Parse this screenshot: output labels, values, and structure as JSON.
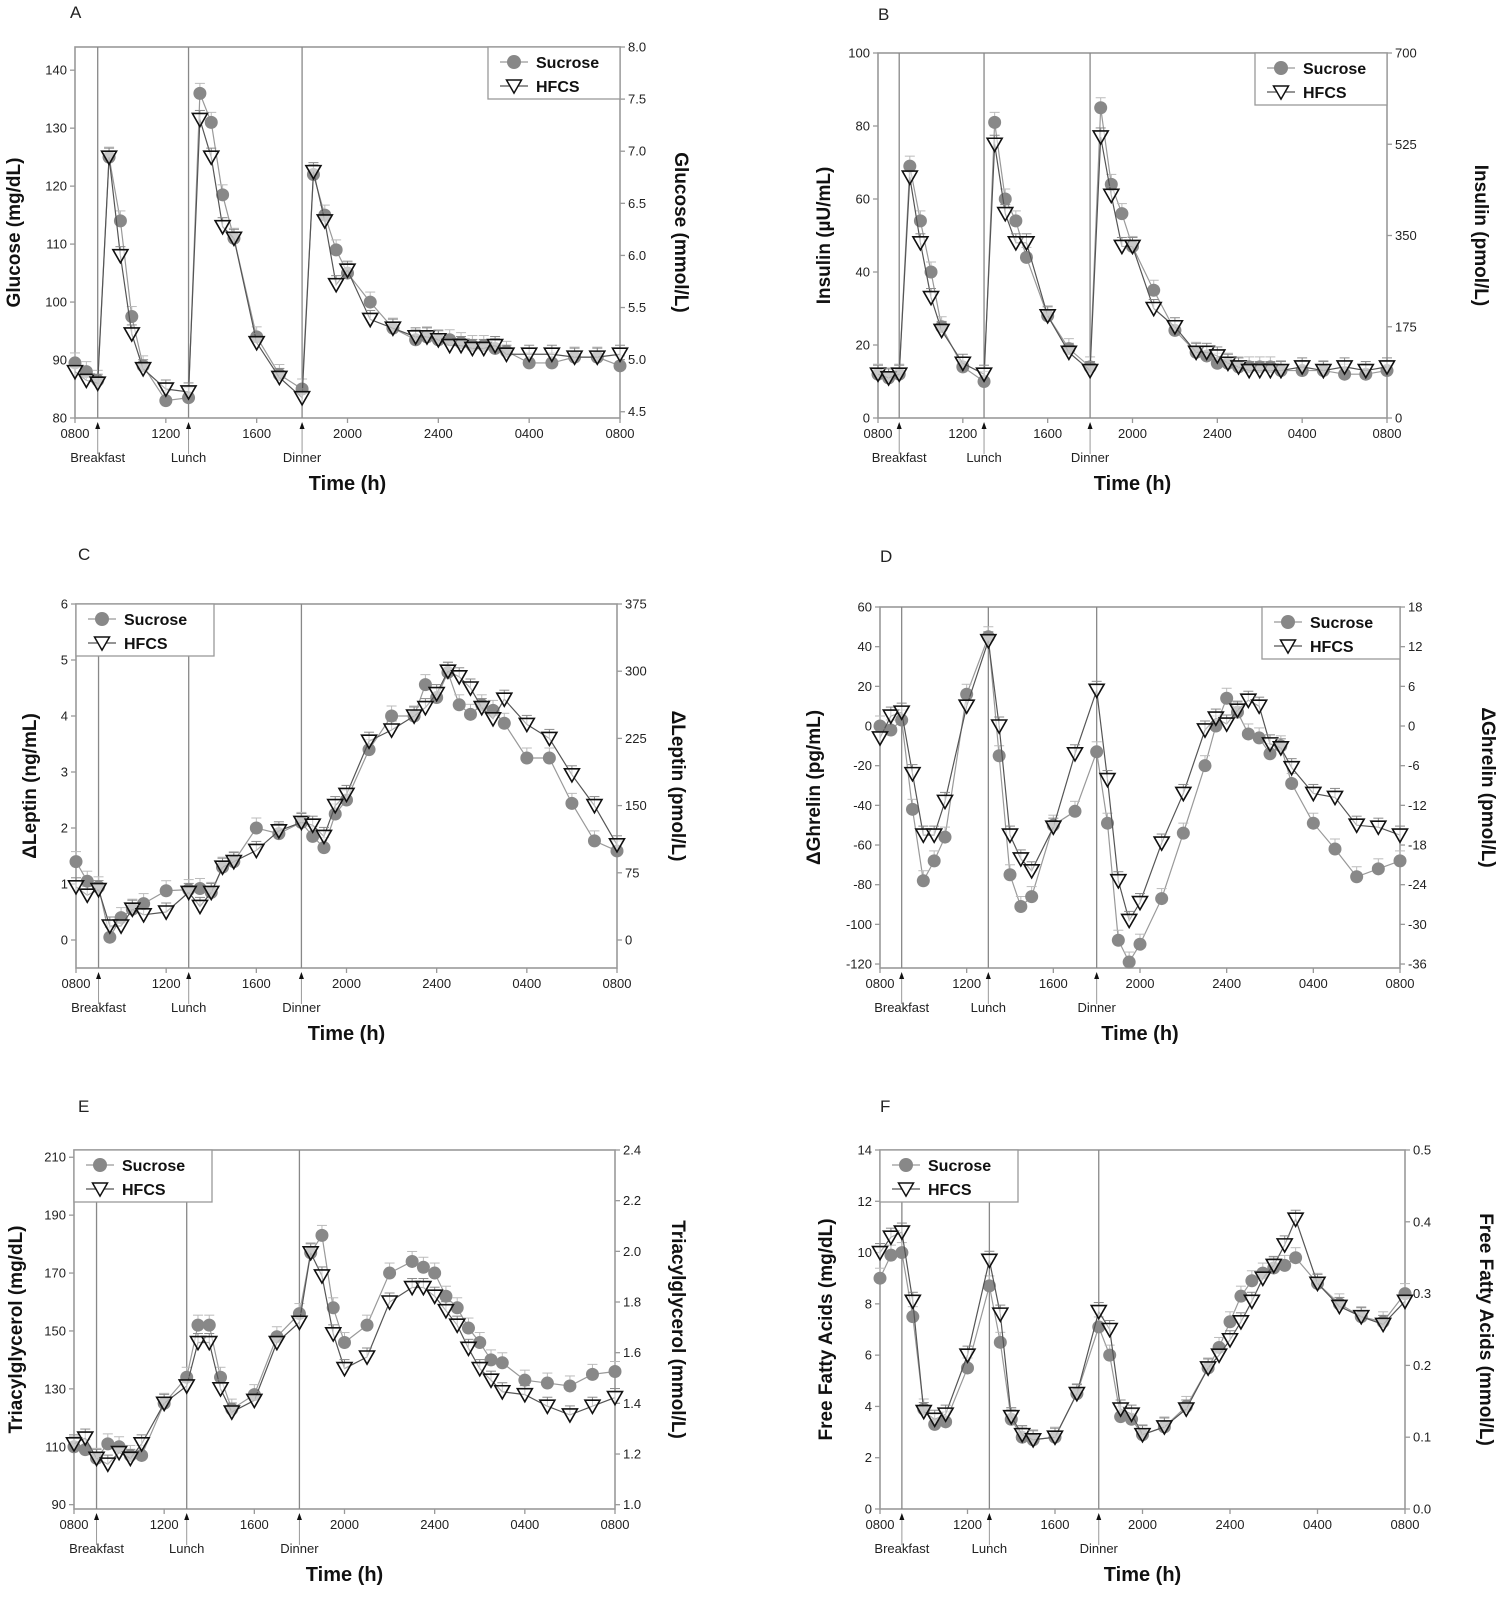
{
  "figure": {
    "x_title": "Time (h)",
    "x_tick_labels": [
      "0800",
      "1200",
      "1600",
      "2000",
      "2400",
      "0400",
      "0800"
    ],
    "meals": [
      {
        "label": "Breakfast",
        "hour": 1
      },
      {
        "label": "Lunch",
        "hour": 5
      },
      {
        "label": "Dinner",
        "hour": 10
      }
    ],
    "legend": {
      "sucrose": "Sucrose",
      "hfcs": "HFCS"
    },
    "colors": {
      "sucrose": "#888888",
      "hfcs_fill": "#ffffff",
      "hfcs_stroke": "#111111",
      "axis": "#999999",
      "meal_line": "#888888"
    }
  },
  "chart_data": [
    {
      "type": "line",
      "panel": "A",
      "title": "",
      "xlabel": "Time (h)",
      "ylabel": "Glucose (mg/dL)",
      "ylabel_right": "Glucose (mmol/L)",
      "x_unit": "hours after 0800",
      "xlim": [
        0,
        24
      ],
      "ylim": [
        80,
        144
      ],
      "yticks": [
        80,
        90,
        100,
        110,
        120,
        130,
        140
      ],
      "ytick_labels": [
        "80",
        "90",
        "100",
        "110",
        "120",
        "130",
        "140"
      ],
      "right_ylim": [
        4.44,
        8.0
      ],
      "right_yticks": [
        4.5,
        5.0,
        5.5,
        6.0,
        6.5,
        7.0,
        7.5,
        8.0
      ],
      "right_ytick_labels": [
        "4.5",
        "5.0",
        "5.5",
        "6.0",
        "6.5",
        "7.0",
        "7.5",
        "8.0"
      ],
      "legend_position": "top-right",
      "x": [
        0,
        0.5,
        1,
        1.5,
        2,
        2.5,
        3,
        4,
        5,
        5.5,
        6,
        6.5,
        7,
        8,
        9,
        10,
        10.5,
        11,
        11.5,
        12,
        13,
        14,
        15,
        15.5,
        16,
        16.5,
        17,
        17.5,
        18,
        18.5,
        19,
        20,
        21,
        22,
        23,
        24
      ],
      "series": [
        {
          "name": "Sucrose",
          "values": [
            89.5,
            88,
            86.5,
            125,
            114,
            97.5,
            89,
            83,
            83.5,
            136,
            131,
            118.5,
            111,
            94,
            87.5,
            85,
            122,
            115,
            109,
            105,
            100,
            95.5,
            93.5,
            94,
            93.5,
            93.5,
            93,
            92.5,
            92.5,
            92,
            91.5,
            89.5,
            89.5,
            90.5,
            90.5,
            89
          ]
        },
        {
          "name": "HFCS",
          "values": [
            88,
            86.5,
            86,
            125,
            108,
            94.5,
            88.5,
            85,
            84.5,
            131.5,
            125,
            113,
            111,
            93,
            87,
            83.5,
            122.5,
            114,
            103,
            105.5,
            97,
            95.5,
            94,
            94,
            93.5,
            92.5,
            92.5,
            92,
            92,
            92.5,
            91,
            91,
            91,
            90.5,
            90.5,
            91
          ]
        }
      ]
    },
    {
      "type": "line",
      "panel": "B",
      "title": "",
      "xlabel": "Time (h)",
      "ylabel": "Insulin (µU/mL)",
      "ylabel_right": "Insulin (pmol/L)",
      "x_unit": "hours after 0800",
      "xlim": [
        0,
        24
      ],
      "ylim": [
        0,
        100
      ],
      "yticks": [
        0,
        20,
        40,
        60,
        80,
        100
      ],
      "ytick_labels": [
        "0",
        "20",
        "40",
        "60",
        "80",
        "100"
      ],
      "right_ylim": [
        0,
        700
      ],
      "right_yticks": [
        0,
        175,
        350,
        525,
        700
      ],
      "right_ytick_labels": [
        "0",
        "175",
        "350",
        "525",
        "700"
      ],
      "legend_position": "top-right",
      "x": [
        0,
        0.5,
        1,
        1.5,
        2,
        2.5,
        3,
        4,
        5,
        5.5,
        6,
        6.5,
        7,
        8,
        9,
        10,
        10.5,
        11,
        11.5,
        12,
        13,
        14,
        15,
        15.5,
        16,
        16.5,
        17,
        17.5,
        18,
        18.5,
        19,
        20,
        21,
        22,
        23,
        24
      ],
      "series": [
        {
          "name": "Sucrose",
          "values": [
            12,
            11,
            12,
            69,
            54,
            40,
            25,
            14,
            10,
            81,
            60,
            54,
            44,
            28,
            19,
            14,
            85,
            64,
            56,
            47,
            35,
            24,
            18,
            17,
            15,
            15,
            14,
            14,
            14,
            14,
            13,
            13,
            13,
            12,
            12,
            13
          ]
        },
        {
          "name": "HFCS",
          "values": [
            12,
            11,
            12,
            66,
            48,
            33,
            24,
            15,
            12,
            75,
            56,
            48,
            48,
            28,
            18,
            13,
            77,
            61,
            47,
            47,
            30,
            25,
            18,
            18,
            17,
            15,
            14,
            13,
            13,
            13,
            13,
            14,
            13,
            14,
            13,
            14
          ]
        }
      ]
    },
    {
      "type": "line",
      "panel": "C",
      "title": "",
      "xlabel": "Time (h)",
      "ylabel": "ΔLeptin (ng/mL)",
      "ylabel_right": "ΔLeptin (pmol/L)",
      "x_unit": "hours after 0800",
      "xlim": [
        0,
        24
      ],
      "ylim": [
        -0.5,
        6
      ],
      "yticks": [
        0,
        1,
        2,
        3,
        4,
        5,
        6
      ],
      "ytick_labels": [
        "0",
        "1",
        "2",
        "3",
        "4",
        "5",
        "6"
      ],
      "right_ylim": [
        -31.25,
        375
      ],
      "right_yticks": [
        0,
        75,
        150,
        225,
        300,
        375
      ],
      "right_ytick_labels": [
        "0",
        "75",
        "150",
        "225",
        "300",
        "375"
      ],
      "legend_position": "top-left",
      "x": [
        0,
        0.5,
        1,
        1.5,
        2,
        2.5,
        3,
        4,
        5,
        5.5,
        6,
        6.5,
        7,
        8,
        9,
        10,
        10.5,
        11,
        11.5,
        12,
        13,
        14,
        15,
        15.5,
        16,
        16.5,
        17,
        17.5,
        18,
        18.5,
        19,
        20,
        21,
        22,
        23,
        24
      ],
      "series": [
        {
          "name": "Sucrose",
          "values": [
            1.4,
            1.05,
            0.95,
            0.05,
            0.4,
            0.55,
            0.65,
            0.88,
            0.9,
            0.92,
            0.85,
            1.3,
            1.4,
            2.0,
            1.9,
            2.1,
            1.85,
            1.65,
            2.25,
            2.5,
            3.4,
            4.0,
            4.0,
            4.56,
            4.33,
            4.78,
            4.2,
            4.03,
            4.2,
            4.1,
            3.87,
            3.25,
            3.25,
            2.44,
            1.77,
            1.59
          ]
        },
        {
          "name": "HFCS",
          "values": [
            0.95,
            0.8,
            0.9,
            0.25,
            0.25,
            0.55,
            0.45,
            0.5,
            0.85,
            0.6,
            0.85,
            1.3,
            1.4,
            1.6,
            1.95,
            2.1,
            2.05,
            1.85,
            2.4,
            2.6,
            3.55,
            3.75,
            4.0,
            4.15,
            4.4,
            4.8,
            4.7,
            4.5,
            4.15,
            3.95,
            4.3,
            3.85,
            3.6,
            2.95,
            2.4,
            1.7
          ]
        }
      ]
    },
    {
      "type": "line",
      "panel": "D",
      "title": "",
      "xlabel": "Time (h)",
      "ylabel": "ΔGhrelin (pg/mL)",
      "ylabel_right": "ΔGhrelin (pmol/L)",
      "x_unit": "hours after 0800",
      "xlim": [
        0,
        24
      ],
      "ylim": [
        -122,
        60
      ],
      "yticks": [
        -120,
        -100,
        -80,
        -60,
        -40,
        -20,
        0,
        20,
        40,
        60
      ],
      "ytick_labels": [
        "-120",
        "-100",
        "-80",
        "-60",
        "-40",
        "-20",
        "0",
        "20",
        "40",
        "60"
      ],
      "right_ylim": [
        -36.6,
        18
      ],
      "right_yticks": [
        -36,
        -30,
        -24,
        -18,
        -12,
        -6,
        0,
        6,
        12,
        18
      ],
      "right_ytick_labels": [
        "-36",
        "-30",
        "-24",
        "-18",
        "-12",
        "-6",
        "0",
        "6",
        "12",
        "18"
      ],
      "legend_position": "top-right",
      "x": [
        0,
        0.5,
        1,
        1.5,
        2,
        2.5,
        3,
        4,
        5,
        5.5,
        6,
        6.5,
        7,
        8,
        9,
        10,
        10.5,
        11,
        11.5,
        12,
        13,
        14,
        15,
        15.5,
        16,
        16.5,
        17,
        17.5,
        18,
        18.5,
        19,
        20,
        21,
        22,
        23,
        24
      ],
      "series": [
        {
          "name": "Sucrose",
          "values": [
            0,
            -2,
            3,
            -42,
            -78,
            -68,
            -56,
            16,
            45,
            -15,
            -75,
            -91,
            -86,
            -50,
            -43,
            -13,
            -49,
            -108,
            -119,
            -110,
            -87,
            -54,
            -20,
            0,
            14,
            7,
            -4,
            -6,
            -14,
            -10,
            -29,
            -49,
            -62,
            -76,
            -72,
            -68
          ]
        },
        {
          "name": "HFCS",
          "values": [
            -6,
            5,
            7,
            -24,
            -55,
            -55,
            -38,
            10,
            43,
            0,
            -55,
            -67,
            -73,
            -51,
            -14,
            18,
            -27,
            -78,
            -98,
            -89,
            -59,
            -34,
            -2,
            4,
            1,
            8,
            13,
            10,
            -9,
            -11,
            -21,
            -34,
            -36,
            -50,
            -51,
            -55
          ]
        }
      ]
    },
    {
      "type": "line",
      "panel": "E",
      "title": "",
      "xlabel": "Time (h)",
      "ylabel": "Triacylglycerol (mg/dL)",
      "ylabel_right": "Triacylglycerol (mmol/L)",
      "x_unit": "hours after 0800",
      "xlim": [
        0,
        24
      ],
      "ylim": [
        88.5,
        212.5
      ],
      "yticks": [
        90,
        110,
        130,
        150,
        170,
        190,
        210
      ],
      "ytick_labels": [
        "90",
        "110",
        "130",
        "150",
        "170",
        "190",
        "210"
      ],
      "right_ylim": [
        0.983,
        2.4
      ],
      "right_yticks": [
        1.0,
        1.2,
        1.4,
        1.6,
        1.8,
        2.0,
        2.2,
        2.4
      ],
      "right_ytick_labels": [
        "1.0",
        "1.2",
        "1.4",
        "1.6",
        "1.8",
        "2.0",
        "2.2",
        "2.4"
      ],
      "legend_position": "top-left",
      "x": [
        0,
        0.5,
        1,
        1.5,
        2,
        2.5,
        3,
        4,
        5,
        5.5,
        6,
        6.5,
        7,
        8,
        9,
        10,
        10.5,
        11,
        11.5,
        12,
        13,
        14,
        15,
        15.5,
        16,
        16.5,
        17,
        17.5,
        18,
        18.5,
        19,
        20,
        21,
        22,
        23,
        24
      ],
      "series": [
        {
          "name": "Sucrose",
          "values": [
            110,
            109,
            106,
            111,
            110,
            107,
            107,
            125,
            134,
            152,
            152,
            134,
            123,
            128,
            148,
            156,
            177,
            183,
            158,
            146,
            152,
            170,
            174,
            172,
            170,
            162,
            158,
            151,
            146,
            140,
            139,
            133,
            132,
            131,
            135,
            136
          ]
        },
        {
          "name": "HFCS",
          "values": [
            111,
            113,
            106,
            104,
            108,
            106,
            111,
            125,
            131,
            146,
            146,
            130,
            122,
            126,
            146,
            153,
            177,
            169,
            149,
            137,
            141,
            160,
            165,
            165,
            162,
            157,
            152,
            144,
            137,
            133,
            129,
            128,
            124,
            121,
            124,
            127
          ]
        }
      ]
    },
    {
      "type": "line",
      "panel": "F",
      "title": "",
      "xlabel": "Time (h)",
      "ylabel": "Free Fatty Acids (mg/dL)",
      "ylabel_right": "Free Fatty Acids (mmol/L)",
      "x_unit": "hours after 0800",
      "xlim": [
        0,
        24
      ],
      "ylim": [
        0,
        14
      ],
      "yticks": [
        0,
        2,
        4,
        6,
        8,
        10,
        12,
        14
      ],
      "ytick_labels": [
        "0",
        "2",
        "4",
        "6",
        "8",
        "10",
        "12",
        "14"
      ],
      "right_ylim": [
        0,
        0.5
      ],
      "right_yticks": [
        0.0,
        0.1,
        0.2,
        0.3,
        0.4,
        0.5
      ],
      "right_ytick_labels": [
        "0.0",
        "0.1",
        "0.2",
        "0.3",
        "0.4",
        "0.5"
      ],
      "legend_position": "top-left",
      "x": [
        0,
        0.5,
        1,
        1.5,
        2,
        2.5,
        3,
        4,
        5,
        5.5,
        6,
        6.5,
        7,
        8,
        9,
        10,
        10.5,
        11,
        11.5,
        12,
        13,
        14,
        15,
        15.5,
        16,
        16.5,
        17,
        17.5,
        18,
        18.5,
        19,
        20,
        21,
        22,
        23,
        24
      ],
      "series": [
        {
          "name": "Sucrose",
          "values": [
            9.0,
            9.9,
            10.0,
            7.5,
            3.9,
            3.3,
            3.4,
            5.5,
            8.7,
            6.5,
            3.5,
            2.8,
            2.7,
            2.8,
            4.5,
            7.1,
            6.0,
            3.6,
            3.5,
            2.9,
            3.2,
            4.0,
            5.5,
            6.3,
            7.3,
            8.3,
            8.9,
            9.2,
            9.4,
            9.5,
            9.8,
            8.8,
            8.0,
            7.5,
            7.3,
            8.4
          ]
        },
        {
          "name": "HFCS",
          "values": [
            10.0,
            10.6,
            10.8,
            8.1,
            3.8,
            3.5,
            3.7,
            6.0,
            9.7,
            7.6,
            3.6,
            2.9,
            2.7,
            2.8,
            4.5,
            7.7,
            7.0,
            3.9,
            3.7,
            2.9,
            3.2,
            3.9,
            5.5,
            6.0,
            6.6,
            7.3,
            8.1,
            9.0,
            9.5,
            10.3,
            11.3,
            8.8,
            7.9,
            7.5,
            7.2,
            8.1
          ]
        }
      ]
    }
  ]
}
